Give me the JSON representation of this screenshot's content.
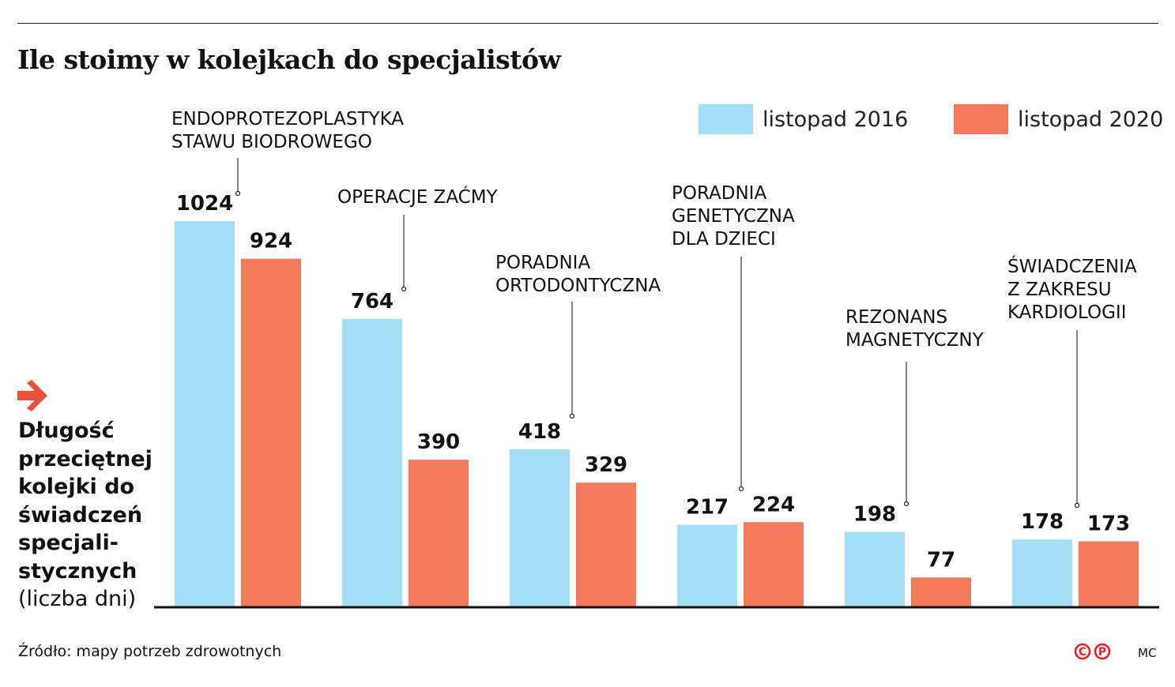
{
  "title": "Ile stoimy w kolejkach do specjalistów",
  "y_axis_label": {
    "bold_lines": [
      "Długość",
      "przeciętnej",
      "kolejki do",
      "świadczeń",
      "specjali-",
      "stycznych"
    ],
    "unit": "(liczba dni)"
  },
  "source": "Źródło: mapy potrzeb zdrowotnych",
  "credit": "MC",
  "logo": "CP",
  "colors": {
    "listopad 2016": "#a5def7",
    "listopad 2020": "#f37a5a",
    "arrow": "#e8503a"
  },
  "chart_data": {
    "type": "bar",
    "title": "Ile stoimy w kolejkach do specjalistów",
    "ylabel": "Długość przeciętnej kolejki do świadczeń specjalistycznych (liczba dni)",
    "ylim": [
      0,
      1024
    ],
    "grid": false,
    "legend": "top-right",
    "categories": [
      [
        "ENDOPROTEZOPLASTYKA",
        "STAWU BIODROWEGO"
      ],
      [
        "OPERACJE ZAĆMY"
      ],
      [
        "PORADNIA",
        "ORTODONTYCZNA"
      ],
      [
        "PORADNIA",
        "GENETYCZNA",
        "DLA DZIECI"
      ],
      [
        "REZONANS",
        "MAGNETYCZNY"
      ],
      [
        "ŚWIADCZENIA",
        "Z ZAKRESU",
        "KARDIOLOGII"
      ]
    ],
    "series": [
      {
        "name": "listopad 2016",
        "values": [
          1024,
          764,
          418,
          217,
          198,
          178
        ]
      },
      {
        "name": "listopad 2020",
        "values": [
          924,
          390,
          329,
          224,
          77,
          173
        ]
      }
    ]
  }
}
